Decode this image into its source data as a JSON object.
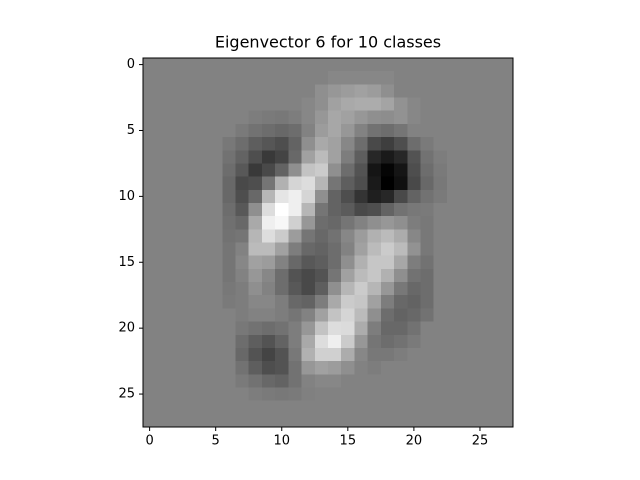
{
  "chart_data": {
    "type": "heatmap",
    "title": "Eigenvector 6 for 10 classes",
    "colormap": "gray",
    "xlim": [
      -0.5,
      27.5
    ],
    "ylim": [
      27.5,
      -0.5
    ],
    "xticks": [
      0,
      5,
      10,
      15,
      20,
      25
    ],
    "yticks": [
      0,
      5,
      10,
      15,
      20,
      25
    ],
    "z": [
      [
        50,
        50,
        50,
        50,
        50,
        50,
        50,
        50,
        50,
        50,
        50,
        50,
        50,
        50,
        50,
        50,
        50,
        50,
        50,
        50,
        50,
        50,
        50,
        50,
        50,
        50,
        50,
        50
      ],
      [
        50,
        50,
        50,
        50,
        50,
        50,
        50,
        50,
        50,
        50,
        50,
        50,
        50,
        50,
        52,
        52,
        52,
        52,
        52,
        50,
        50,
        50,
        50,
        50,
        50,
        50,
        50,
        50
      ],
      [
        50,
        50,
        50,
        50,
        50,
        50,
        50,
        50,
        50,
        50,
        50,
        50,
        50,
        55,
        58,
        60,
        62,
        60,
        55,
        50,
        50,
        50,
        50,
        50,
        50,
        50,
        50,
        50
      ],
      [
        50,
        50,
        50,
        50,
        50,
        50,
        50,
        50,
        50,
        50,
        50,
        50,
        52,
        55,
        62,
        65,
        66,
        66,
        63,
        56,
        52,
        50,
        50,
        50,
        50,
        50,
        50,
        50
      ],
      [
        50,
        50,
        50,
        50,
        50,
        50,
        50,
        50,
        48,
        47,
        46,
        48,
        52,
        58,
        64,
        62,
        58,
        55,
        54,
        56,
        52,
        50,
        50,
        50,
        50,
        50,
        50,
        50
      ],
      [
        50,
        50,
        50,
        50,
        50,
        50,
        50,
        47,
        44,
        42,
        40,
        42,
        50,
        60,
        64,
        58,
        50,
        44,
        42,
        45,
        50,
        50,
        50,
        50,
        50,
        50,
        50,
        50
      ],
      [
        50,
        50,
        50,
        50,
        50,
        50,
        46,
        42,
        36,
        33,
        30,
        38,
        55,
        65,
        62,
        52,
        42,
        28,
        24,
        30,
        42,
        47,
        50,
        50,
        50,
        50,
        50,
        50
      ],
      [
        50,
        50,
        50,
        50,
        50,
        50,
        44,
        38,
        30,
        22,
        26,
        40,
        62,
        72,
        62,
        48,
        36,
        15,
        10,
        15,
        32,
        44,
        48,
        50,
        50,
        50,
        50,
        50
      ],
      [
        50,
        50,
        50,
        50,
        50,
        50,
        42,
        34,
        22,
        28,
        38,
        55,
        75,
        78,
        55,
        42,
        32,
        8,
        2,
        8,
        30,
        42,
        47,
        50,
        50,
        50,
        50,
        50
      ],
      [
        50,
        50,
        50,
        50,
        50,
        50,
        40,
        28,
        30,
        45,
        68,
        82,
        85,
        70,
        45,
        36,
        30,
        10,
        0,
        6,
        28,
        40,
        46,
        50,
        50,
        50,
        50,
        50
      ],
      [
        50,
        50,
        50,
        50,
        50,
        50,
        40,
        30,
        40,
        70,
        88,
        92,
        82,
        55,
        38,
        30,
        20,
        12,
        15,
        28,
        38,
        44,
        47,
        50,
        50,
        50,
        50,
        50
      ],
      [
        50,
        50,
        50,
        50,
        50,
        50,
        42,
        34,
        55,
        85,
        98,
        92,
        70,
        45,
        38,
        35,
        28,
        30,
        38,
        44,
        46,
        47,
        50,
        50,
        50,
        50,
        50,
        50
      ],
      [
        50,
        50,
        50,
        50,
        50,
        50,
        43,
        40,
        65,
        92,
        95,
        80,
        58,
        42,
        40,
        45,
        50,
        55,
        58,
        55,
        48,
        46,
        50,
        50,
        50,
        50,
        50,
        50
      ],
      [
        50,
        50,
        50,
        50,
        50,
        50,
        44,
        45,
        70,
        85,
        78,
        60,
        45,
        40,
        44,
        52,
        60,
        68,
        72,
        66,
        52,
        46,
        50,
        50,
        50,
        50,
        50,
        50
      ],
      [
        50,
        50,
        50,
        50,
        50,
        50,
        45,
        50,
        72,
        72,
        62,
        48,
        40,
        38,
        42,
        50,
        62,
        72,
        78,
        72,
        56,
        46,
        50,
        50,
        50,
        50,
        50,
        50
      ],
      [
        50,
        50,
        50,
        50,
        50,
        50,
        45,
        52,
        62,
        60,
        50,
        40,
        34,
        36,
        42,
        55,
        68,
        76,
        76,
        64,
        48,
        44,
        50,
        50,
        50,
        50,
        50,
        50
      ],
      [
        50,
        50,
        50,
        50,
        50,
        50,
        45,
        50,
        58,
        52,
        42,
        32,
        28,
        32,
        45,
        62,
        72,
        76,
        68,
        55,
        44,
        42,
        50,
        50,
        50,
        50,
        50,
        50
      ],
      [
        50,
        50,
        50,
        50,
        50,
        50,
        46,
        48,
        55,
        50,
        42,
        34,
        28,
        36,
        55,
        70,
        78,
        70,
        58,
        46,
        40,
        42,
        50,
        50,
        50,
        50,
        50,
        50
      ],
      [
        50,
        50,
        50,
        50,
        50,
        50,
        47,
        48,
        52,
        52,
        48,
        40,
        38,
        48,
        65,
        78,
        76,
        62,
        48,
        40,
        38,
        42,
        50,
        50,
        50,
        50,
        50,
        50
      ],
      [
        50,
        50,
        50,
        50,
        50,
        50,
        50,
        48,
        50,
        50,
        48,
        45,
        50,
        62,
        75,
        82,
        72,
        55,
        42,
        38,
        40,
        44,
        50,
        50,
        50,
        50,
        50,
        50
      ],
      [
        50,
        50,
        50,
        50,
        50,
        50,
        50,
        46,
        44,
        42,
        44,
        48,
        58,
        75,
        85,
        84,
        66,
        48,
        40,
        40,
        44,
        50,
        50,
        50,
        50,
        50,
        50,
        50
      ],
      [
        50,
        50,
        50,
        50,
        50,
        50,
        50,
        42,
        36,
        32,
        38,
        48,
        65,
        85,
        92,
        78,
        58,
        45,
        42,
        44,
        47,
        50,
        50,
        50,
        50,
        50,
        50,
        50
      ],
      [
        50,
        50,
        50,
        50,
        50,
        50,
        50,
        40,
        32,
        26,
        32,
        46,
        68,
        80,
        80,
        66,
        52,
        46,
        46,
        48,
        50,
        50,
        50,
        50,
        50,
        50,
        50,
        50
      ],
      [
        50,
        50,
        50,
        50,
        50,
        50,
        50,
        44,
        36,
        30,
        32,
        44,
        58,
        62,
        60,
        55,
        50,
        48,
        50,
        50,
        50,
        50,
        50,
        50,
        50,
        50,
        50,
        50
      ],
      [
        50,
        50,
        50,
        50,
        50,
        50,
        50,
        47,
        44,
        40,
        38,
        44,
        50,
        52,
        52,
        50,
        50,
        50,
        50,
        50,
        50,
        50,
        50,
        50,
        50,
        50,
        50,
        50
      ],
      [
        50,
        50,
        50,
        50,
        50,
        50,
        50,
        50,
        48,
        47,
        46,
        47,
        49,
        50,
        50,
        50,
        50,
        50,
        50,
        50,
        50,
        50,
        50,
        50,
        50,
        50,
        50,
        50
      ],
      [
        50,
        50,
        50,
        50,
        50,
        50,
        50,
        50,
        50,
        50,
        50,
        50,
        50,
        50,
        50,
        50,
        50,
        50,
        50,
        50,
        50,
        50,
        50,
        50,
        50,
        50,
        50,
        50
      ],
      [
        50,
        50,
        50,
        50,
        50,
        50,
        50,
        50,
        50,
        50,
        50,
        50,
        50,
        50,
        50,
        50,
        50,
        50,
        50,
        50,
        50,
        50,
        50,
        50,
        50,
        50,
        50,
        50
      ]
    ]
  }
}
